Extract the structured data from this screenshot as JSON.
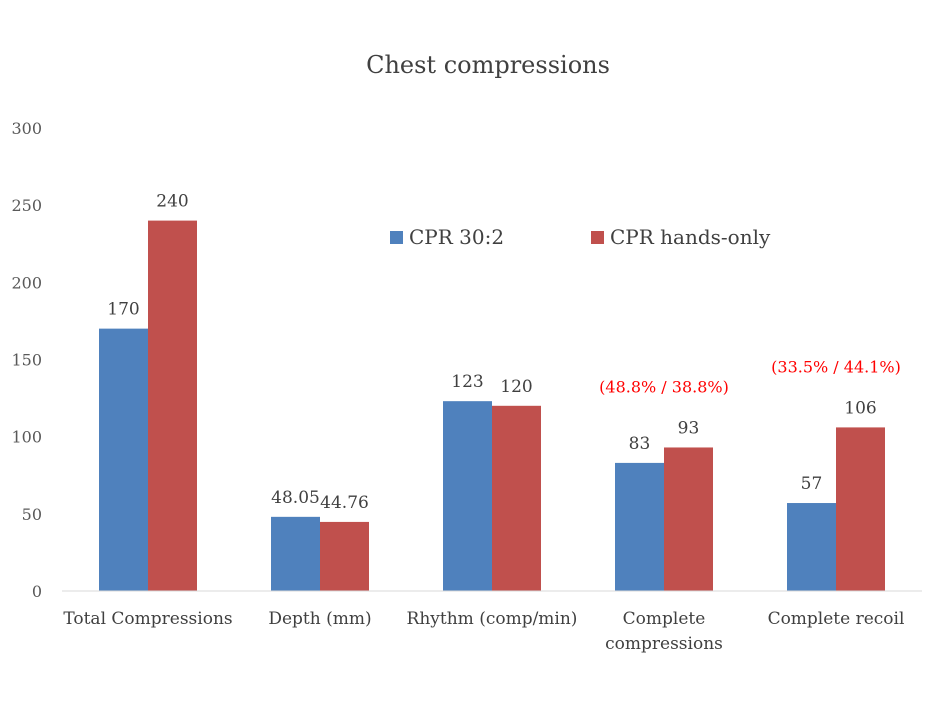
{
  "chart_data": {
    "type": "bar",
    "title": "Chest compressions",
    "xlabel": "",
    "ylabel": "",
    "ylim": [
      0,
      300
    ],
    "yticks": [
      0,
      50,
      100,
      150,
      200,
      250,
      300
    ],
    "grid": false,
    "legend_position": "top-right",
    "categories": [
      [
        "Total Compressions"
      ],
      [
        "Depth (mm)"
      ],
      [
        "Rhythm (comp/min)"
      ],
      [
        "Complete",
        "compressions"
      ],
      [
        "Complete recoil"
      ]
    ],
    "series": [
      {
        "name": "CPR 30:2",
        "color": "#4f81bd",
        "values": [
          170,
          48.05,
          123,
          83,
          57
        ],
        "labels": [
          "170",
          "48.05",
          "123",
          "83",
          "57"
        ]
      },
      {
        "name": "CPR hands-only",
        "color": "#c0504d",
        "values": [
          240,
          44.76,
          120,
          93,
          106
        ],
        "labels": [
          "240",
          "44.76",
          "120",
          "93",
          "106"
        ]
      }
    ],
    "annotations": [
      {
        "category_index": 3,
        "text": "(48.8% / 38.8%)",
        "color": "#ff0000"
      },
      {
        "category_index": 4,
        "text": "(33.5% / 44.1%)",
        "color": "#ff0000"
      }
    ],
    "axis_color": "#d9d9d9"
  }
}
